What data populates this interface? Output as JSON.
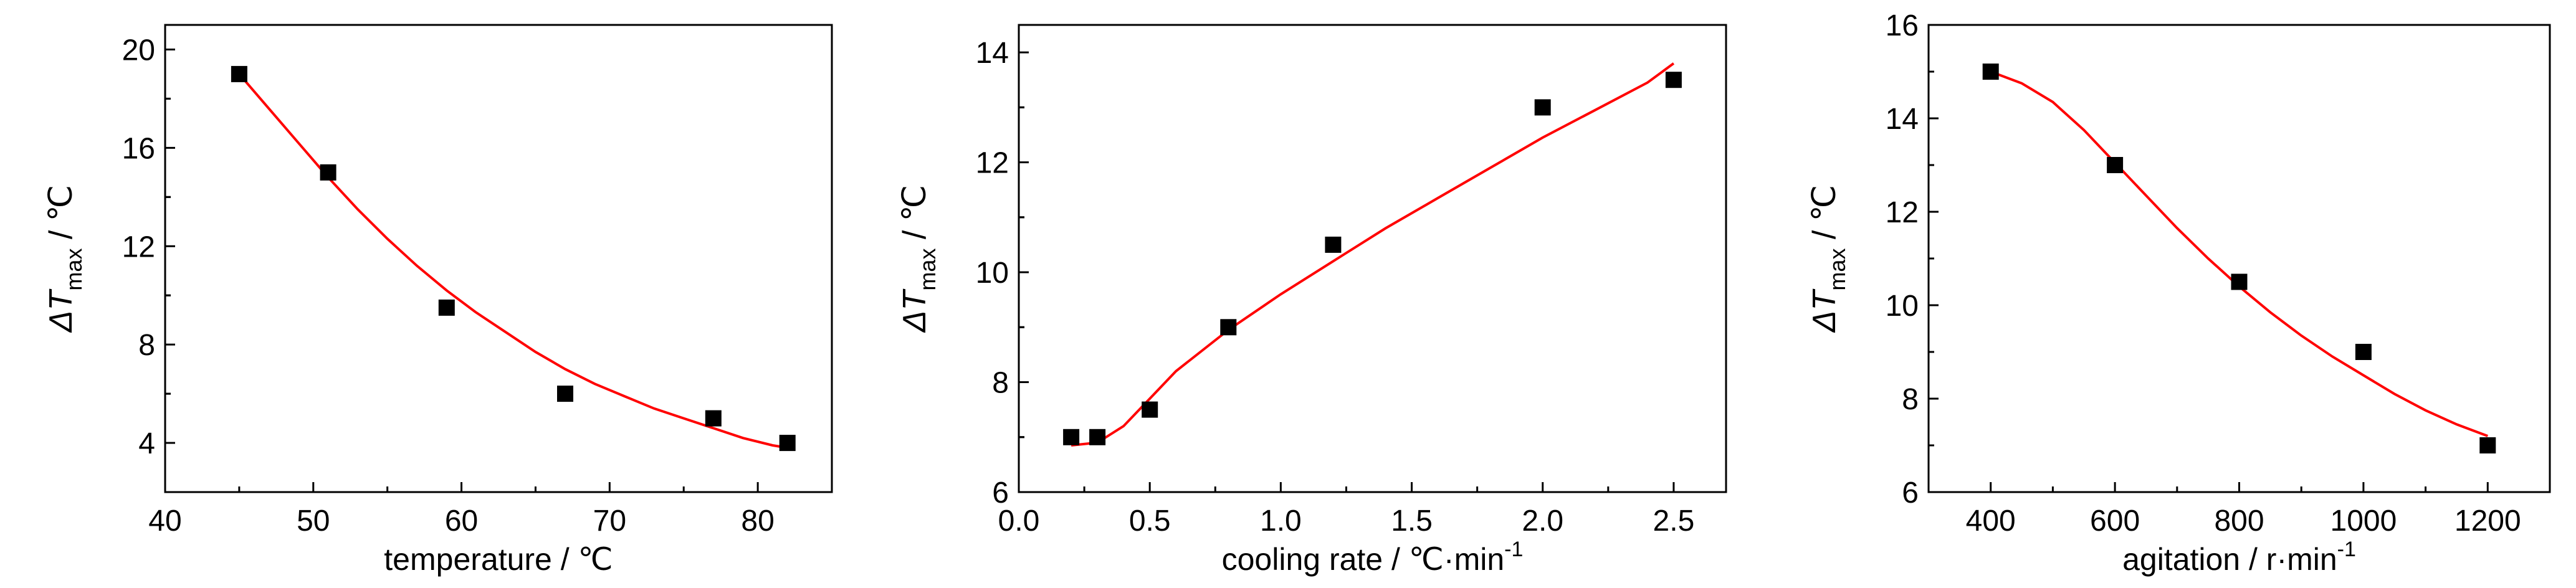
{
  "chart_data": [
    {
      "type": "scatter",
      "title": "",
      "xlabel": "temperature / ℃",
      "ylabel_main": "ΔT",
      "ylabel_sub": "max",
      "ylabel_unit": " / ℃",
      "xlim": [
        40,
        85
      ],
      "ylim": [
        2,
        21
      ],
      "xticks": [
        40,
        50,
        60,
        70,
        80
      ],
      "yticks": [
        4,
        8,
        12,
        16,
        20
      ],
      "xtick_labels": [
        "40",
        "50",
        "60",
        "70",
        "80"
      ],
      "ytick_labels": [
        "4",
        "8",
        "12",
        "16",
        "20"
      ],
      "grid": false,
      "series": [
        {
          "x": [
            45,
            51,
            59,
            67,
            77,
            82
          ],
          "y": [
            19,
            15,
            9.5,
            6,
            5,
            4
          ],
          "marker": "square",
          "color": "#000000"
        }
      ],
      "fit": {
        "x": [
          45,
          47,
          49,
          51,
          53,
          55,
          57,
          59,
          61,
          63,
          65,
          67,
          69,
          71,
          73,
          75,
          77,
          79,
          81,
          82
        ],
        "y": [
          19.0,
          17.6,
          16.2,
          14.8,
          13.5,
          12.3,
          11.2,
          10.2,
          9.3,
          8.5,
          7.7,
          7.0,
          6.4,
          5.9,
          5.4,
          5.0,
          4.6,
          4.2,
          3.9,
          3.8
        ],
        "color": "#ff0000"
      }
    },
    {
      "type": "scatter",
      "title": "",
      "xlabel": "cooling rate / ℃·min",
      "xlabel_sup": "-1",
      "ylabel_main": "ΔT",
      "ylabel_sub": "max",
      "ylabel_unit": " / ℃",
      "xlim": [
        0.0,
        2.7
      ],
      "ylim": [
        6,
        14.5
      ],
      "xticks": [
        0.0,
        0.5,
        1.0,
        1.5,
        2.0,
        2.5
      ],
      "yticks": [
        6,
        8,
        10,
        12,
        14
      ],
      "xtick_labels": [
        "0.0",
        "0.5",
        "1.0",
        "1.5",
        "2.0",
        "2.5"
      ],
      "ytick_labels": [
        "6",
        "8",
        "10",
        "12",
        "14"
      ],
      "grid": false,
      "series": [
        {
          "x": [
            0.2,
            0.3,
            0.5,
            0.8,
            1.2,
            2.0,
            2.5
          ],
          "y": [
            7.0,
            7.0,
            7.5,
            9.0,
            10.5,
            13.0,
            13.5
          ],
          "marker": "square",
          "color": "#000000"
        }
      ],
      "fit": {
        "x": [
          0.2,
          0.3,
          0.4,
          0.5,
          0.6,
          0.8,
          1.0,
          1.2,
          1.4,
          1.6,
          1.8,
          2.0,
          2.2,
          2.4,
          2.5
        ],
        "y": [
          6.85,
          6.9,
          7.2,
          7.7,
          8.2,
          8.95,
          9.6,
          10.2,
          10.8,
          11.35,
          11.9,
          12.45,
          12.95,
          13.45,
          13.8
        ],
        "color": "#ff0000"
      }
    },
    {
      "type": "scatter",
      "title": "",
      "xlabel": "agitation / r·min",
      "xlabel_sup": "-1",
      "ylabel_main": "ΔT",
      "ylabel_sub": "max",
      "ylabel_unit": " / ℃",
      "xlim": [
        300,
        1300
      ],
      "ylim": [
        6,
        16
      ],
      "xticks": [
        400,
        600,
        800,
        1000,
        1200
      ],
      "yticks": [
        6,
        8,
        10,
        12,
        14,
        16
      ],
      "xtick_labels": [
        "400",
        "600",
        "800",
        "1000",
        "1200"
      ],
      "ytick_labels": [
        "6",
        "8",
        "10",
        "12",
        "14",
        "16"
      ],
      "grid": false,
      "series": [
        {
          "x": [
            400,
            600,
            800,
            1000,
            1200
          ],
          "y": [
            15.0,
            13.0,
            10.5,
            9.0,
            7.0
          ],
          "marker": "square",
          "color": "#000000"
        }
      ],
      "fit": {
        "x": [
          400,
          450,
          500,
          550,
          600,
          650,
          700,
          750,
          800,
          850,
          900,
          950,
          1000,
          1050,
          1100,
          1150,
          1200
        ],
        "y": [
          15.0,
          14.75,
          14.35,
          13.75,
          13.05,
          12.35,
          11.65,
          11.0,
          10.4,
          9.85,
          9.35,
          8.9,
          8.5,
          8.1,
          7.75,
          7.45,
          7.2
        ],
        "color": "#ff0000"
      }
    }
  ]
}
